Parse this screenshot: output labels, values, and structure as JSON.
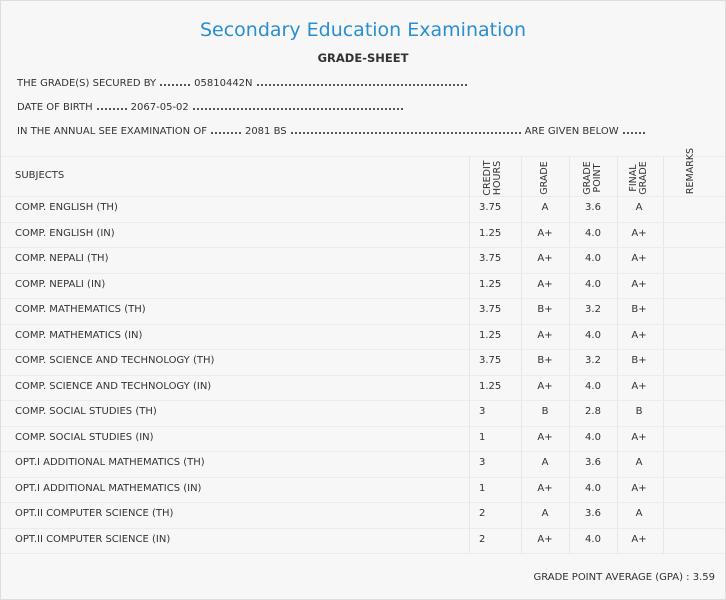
{
  "header": {
    "title": "Secondary Education Examination",
    "subtitle": "GRADE-SHEET"
  },
  "info": [
    {
      "label": "THE GRADE(S) SECURED BY",
      "value": "05810442N"
    },
    {
      "label": "DATE OF BIRTH",
      "value": "2067-05-02"
    },
    {
      "label": "IN THE ANNUAL SEE EXAMINATION OF",
      "value": "2081 BS",
      "suffix": "ARE GIVEN BELOW"
    }
  ],
  "table": {
    "columns": [
      "SUBJECTS",
      "CREDIT HOURS",
      "GRADE",
      "GRADE POINT",
      "FINAL GRADE",
      "REMARKS"
    ],
    "rows": [
      [
        "COMP. ENGLISH (TH)",
        "3.75",
        "A",
        "3.6",
        "A"
      ],
      [
        "COMP. ENGLISH (IN)",
        "1.25",
        "A+",
        "4.0",
        "A+"
      ],
      [
        "COMP. NEPALI (TH)",
        "3.75",
        "A+",
        "4.0",
        "A+"
      ],
      [
        "COMP. NEPALI (IN)",
        "1.25",
        "A+",
        "4.0",
        "A+"
      ],
      [
        "COMP. MATHEMATICS (TH)",
        "3.75",
        "B+",
        "3.2",
        "B+"
      ],
      [
        "COMP. MATHEMATICS (IN)",
        "1.25",
        "A+",
        "4.0",
        "A+"
      ],
      [
        "COMP. SCIENCE AND TECHNOLOGY (TH)",
        "3.75",
        "B+",
        "3.2",
        "B+"
      ],
      [
        "COMP. SCIENCE AND TECHNOLOGY (IN)",
        "1.25",
        "A+",
        "4.0",
        "A+"
      ],
      [
        "COMP. SOCIAL STUDIES (TH)",
        "3",
        "B",
        "2.8",
        "B"
      ],
      [
        "COMP. SOCIAL STUDIES (IN)",
        "1",
        "A+",
        "4.0",
        "A+"
      ],
      [
        "OPT.I ADDITIONAL MATHEMATICS (TH)",
        "3",
        "A",
        "3.6",
        "A"
      ],
      [
        "OPT.I ADDITIONAL MATHEMATICS (IN)",
        "1",
        "A+",
        "4.0",
        "A+"
      ],
      [
        "OPT.II COMPUTER SCIENCE (TH)",
        "2",
        "A",
        "3.6",
        "A"
      ],
      [
        "OPT.II COMPUTER SCIENCE (IN)",
        "2",
        "A+",
        "4.0",
        "A+"
      ]
    ]
  },
  "footer": {
    "label": "GRADE POINT AVERAGE (GPA) :",
    "value": "3.59"
  }
}
